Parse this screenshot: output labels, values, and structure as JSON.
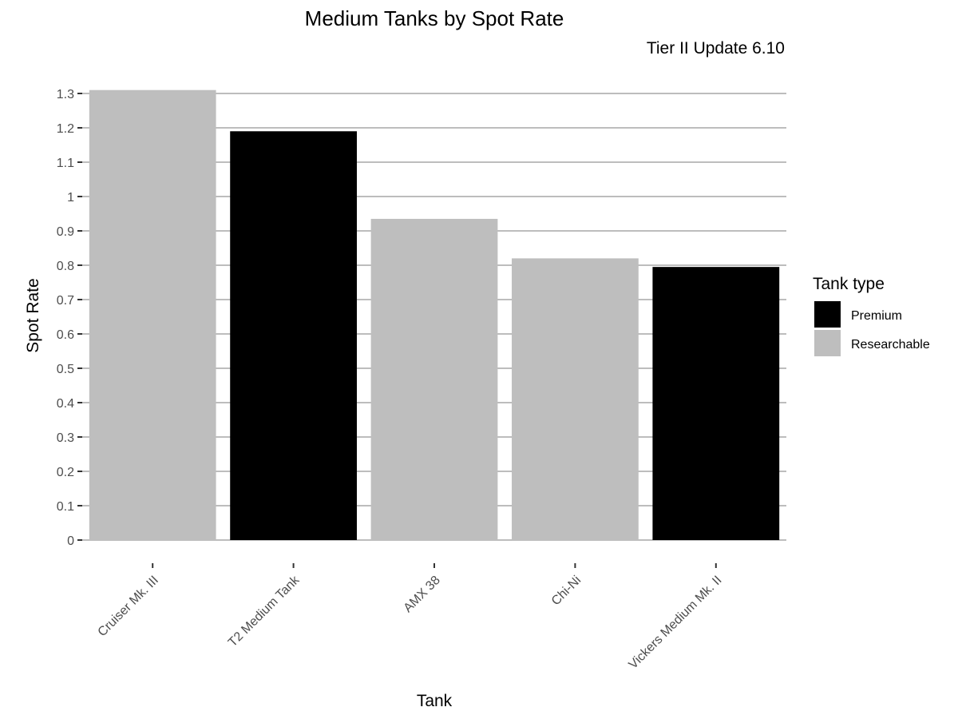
{
  "chart_data": {
    "type": "bar",
    "title": "Medium Tanks by Spot Rate",
    "subtitle": "Tier II Update 6.10",
    "xlabel": "Tank",
    "ylabel": "Spot Rate",
    "categories": [
      "Cruiser Mk. III",
      "T2 Medium Tank",
      "AMX 38",
      "Chi-Ni",
      "Vickers Medium Mk. II"
    ],
    "values": [
      1.31,
      1.19,
      0.935,
      0.82,
      0.795
    ],
    "bar_types": [
      "Researchable",
      "Premium",
      "Researchable",
      "Researchable",
      "Premium"
    ],
    "ylim": [
      0,
      1.3
    ],
    "yticks": [
      0,
      0.1,
      0.2,
      0.3,
      0.4,
      0.5,
      0.6,
      0.7,
      0.8,
      0.9,
      1,
      1.1,
      1.2,
      1.3
    ],
    "ytick_labels": [
      "0",
      "0.1",
      "0.2",
      "0.3",
      "0.4",
      "0.5",
      "0.6",
      "0.7",
      "0.8",
      "0.9",
      "1",
      "1.1",
      "1.2",
      "1.3"
    ],
    "grid": true,
    "legend": {
      "title": "Tank type",
      "placement": "right",
      "entries": [
        {
          "label": "Premium",
          "color": "#000000"
        },
        {
          "label": "Researchable",
          "color": "#bebebe"
        }
      ]
    }
  }
}
